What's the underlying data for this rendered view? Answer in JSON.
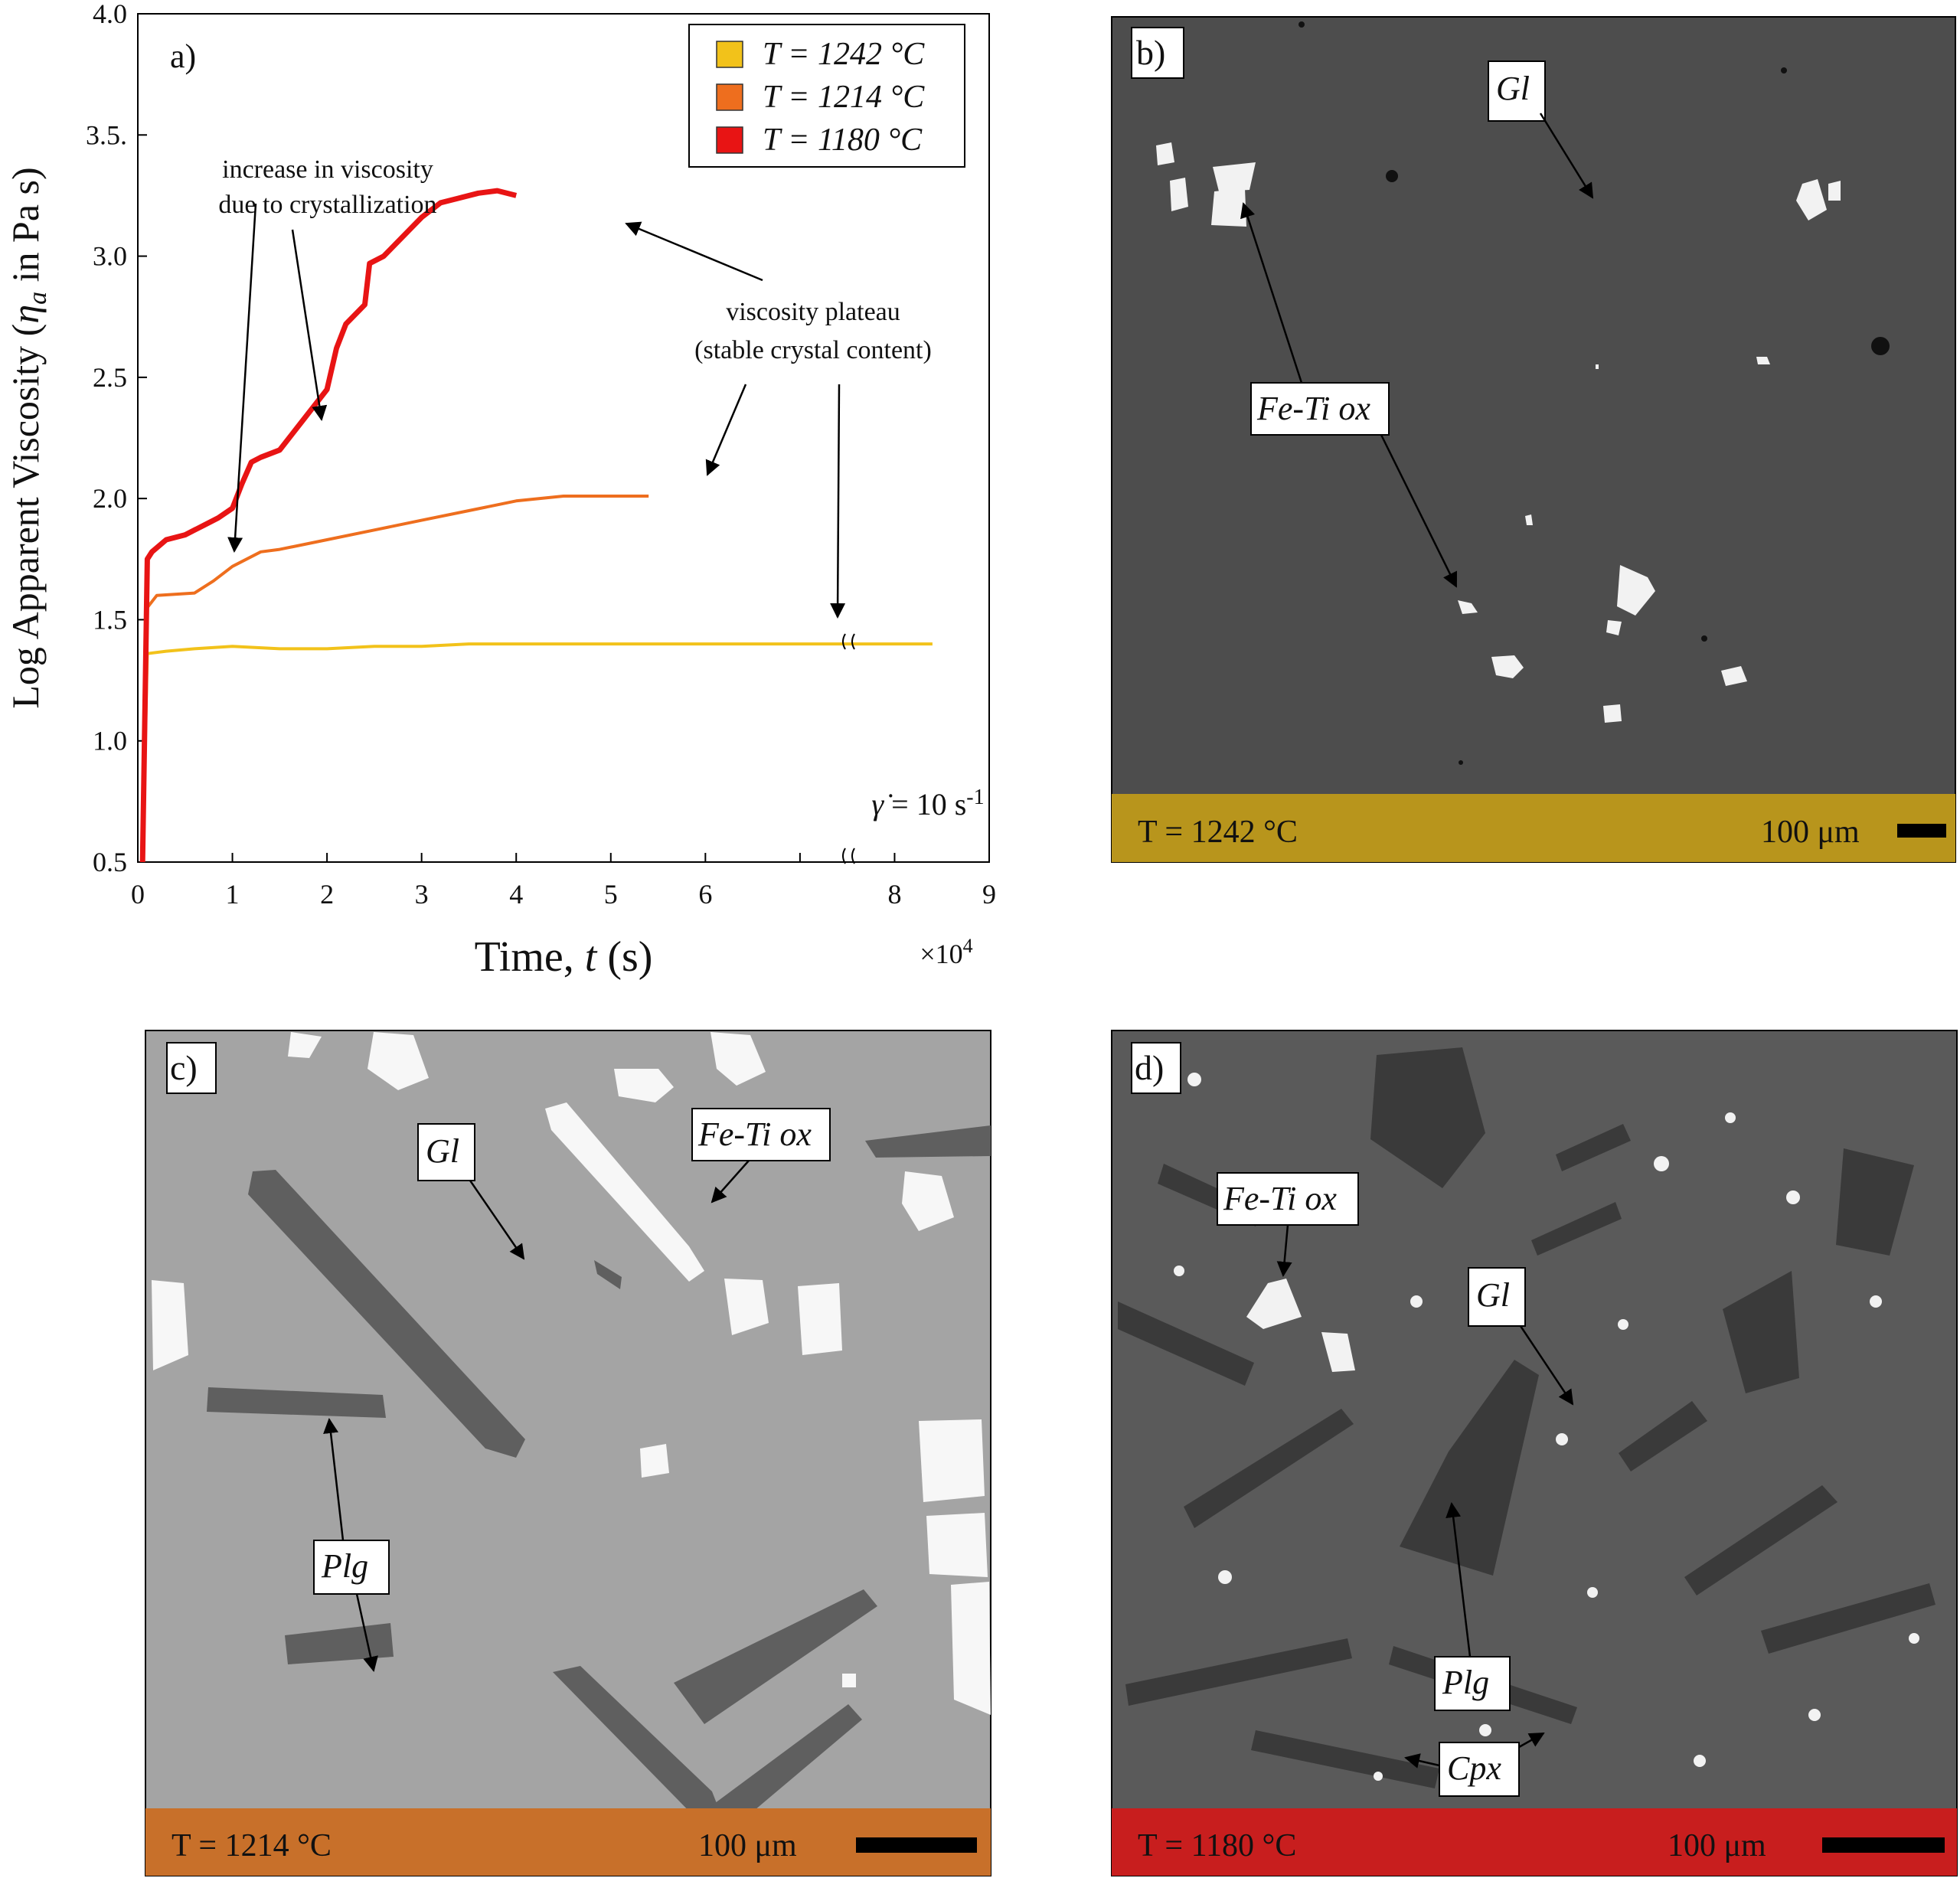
{
  "panels": {
    "a": {
      "label": "a)"
    },
    "b": {
      "label": "b)",
      "temperature": "T = 1242 °C",
      "scale": "100 μm",
      "band_color": "#b8951c",
      "labels": [
        "Gl",
        "Fe-Ti ox"
      ]
    },
    "c": {
      "label": "c)",
      "temperature": "T = 1214 °C",
      "scale": "100 μm",
      "band_color": "#c8702a",
      "labels": [
        "Gl",
        "Fe-Ti ox",
        "Plg"
      ]
    },
    "d": {
      "label": "d)",
      "temperature": "T = 1180 °C",
      "scale": "100 μm",
      "band_color": "#c81e1e",
      "labels": [
        "Fe-Ti ox",
        "Gl",
        "Plg",
        "Cpx"
      ]
    }
  },
  "chart_data": {
    "type": "line",
    "xlabel": "Time, t (s)",
    "x_multiplier": "×10⁴",
    "ylabel": "Log Apparent Viscosity (η_a in Pa s)",
    "xlim": [
      0,
      9
    ],
    "ylim": [
      0.5,
      4.0
    ],
    "x_ticks": [
      "0",
      "1",
      "2",
      "3",
      "4",
      "5",
      "6",
      "7",
      "8",
      "9"
    ],
    "y_ticks": [
      "0.5",
      "1.0",
      "1.5",
      "2.0",
      "2.5",
      "3.0",
      "3.5.",
      "4.0"
    ],
    "axis_break_x": 7.9,
    "series": [
      {
        "name": "T = 1242 °C",
        "color": "#f2c21a",
        "x": [
          0.05,
          0.1,
          0.3,
          0.6,
          1.0,
          1.5,
          2.0,
          2.5,
          3.0,
          3.5,
          4.0,
          4.5,
          5.0,
          5.5,
          6.0,
          6.5,
          7.0,
          7.5,
          7.9,
          8.1,
          8.4
        ],
        "y": [
          0.5,
          1.36,
          1.37,
          1.38,
          1.39,
          1.38,
          1.38,
          1.39,
          1.39,
          1.4,
          1.4,
          1.4,
          1.4,
          1.4,
          1.4,
          1.4,
          1.4,
          1.4,
          1.4,
          1.4,
          1.4
        ]
      },
      {
        "name": "T = 1214 °C",
        "color": "#ee6e1e",
        "x": [
          0.05,
          0.1,
          0.2,
          0.6,
          0.8,
          1.0,
          1.3,
          1.5,
          2.0,
          2.5,
          3.0,
          3.5,
          4.0,
          4.5,
          5.0,
          5.4
        ],
        "y": [
          0.5,
          1.55,
          1.6,
          1.61,
          1.66,
          1.72,
          1.78,
          1.79,
          1.83,
          1.87,
          1.91,
          1.95,
          1.99,
          2.01,
          2.01,
          2.01
        ]
      },
      {
        "name": "T = 1180 °C",
        "color": "#e81414",
        "x": [
          0.05,
          0.1,
          0.15,
          0.3,
          0.5,
          0.7,
          0.85,
          1.0,
          1.1,
          1.2,
          1.3,
          1.5,
          1.7,
          2.0,
          2.1,
          2.2,
          2.4,
          2.45,
          2.6,
          2.8,
          3.0,
          3.2,
          3.4,
          3.6,
          3.8,
          4.0
        ],
        "y": [
          0.5,
          1.75,
          1.78,
          1.83,
          1.85,
          1.89,
          1.92,
          1.96,
          2.06,
          2.15,
          2.17,
          2.2,
          2.3,
          2.45,
          2.62,
          2.72,
          2.8,
          2.97,
          3.0,
          3.08,
          3.16,
          3.22,
          3.24,
          3.26,
          3.27,
          3.25
        ]
      }
    ],
    "annotations": [
      {
        "text_lines": [
          "increase in viscosity",
          "due to crystallization"
        ]
      },
      {
        "text_lines": [
          "viscosity plateau",
          "(stable crystal content)"
        ]
      },
      {
        "text": "γ̇ = 10 s⁻¹"
      }
    ]
  }
}
